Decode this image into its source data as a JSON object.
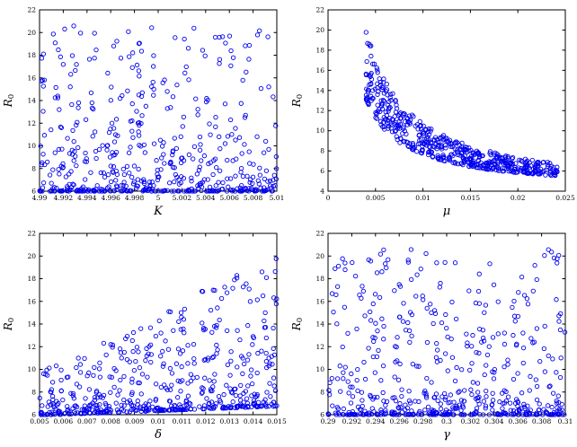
{
  "figure": {
    "background": "#ffffff",
    "axis_color": "#000000",
    "marker_color": "#0000ee"
  },
  "chart_data": [
    {
      "id": "subplot-R0-vs-K",
      "type": "scatter",
      "xlabel": "K",
      "ylabel": {
        "main": "R",
        "sub": "0"
      },
      "xlim": [
        4.99,
        5.01
      ],
      "ylim": [
        6,
        22
      ],
      "xticks": [
        4.99,
        4.992,
        4.994,
        4.996,
        4.998,
        5,
        5.002,
        5.004,
        5.006,
        5.008,
        5.01
      ],
      "xtick_labels": [
        "4.99",
        "4.992",
        "4.994",
        "4.996",
        "4.998",
        "5",
        "5.002",
        "5.004",
        "5.006",
        "5.008",
        "5.01"
      ],
      "yticks": [
        6,
        8,
        10,
        12,
        14,
        16,
        18,
        20,
        22
      ],
      "ytick_labels": [
        "6",
        "8",
        "10",
        "12",
        "14",
        "16",
        "18",
        "20",
        "22"
      ],
      "n_points": 550,
      "seed": 11,
      "x_dist": {
        "type": "uniform",
        "min": 4.99,
        "max": 5.01
      },
      "y_model": {
        "type": "tail",
        "x0": 4.99,
        "base0": 6.0,
        "base_slope": 0,
        "tail0": 14.6,
        "tail_slope": 0,
        "exp": 3.2
      },
      "marker": {
        "shape": "open-circle",
        "color": "#0000ee",
        "radius": 2.2
      },
      "trend": "no visible dependence; R0 dense between 6 and 9 with sparse tail up to ~20 across all K"
    },
    {
      "id": "subplot-R0-vs-mu",
      "type": "scatter",
      "xlabel": "μ",
      "ylabel": {
        "main": "R",
        "sub": "0"
      },
      "xlim": [
        0,
        0.025
      ],
      "ylim": [
        4,
        22
      ],
      "xticks": [
        0,
        0.005,
        0.01,
        0.015,
        0.02,
        0.025
      ],
      "xtick_labels": [
        "0",
        "0.005",
        "0.01",
        "0.015",
        "0.02",
        "0.025"
      ],
      "yticks": [
        4,
        6,
        8,
        10,
        12,
        14,
        16,
        18,
        20,
        22
      ],
      "ytick_labels": [
        "4",
        "6",
        "8",
        "10",
        "12",
        "14",
        "16",
        "18",
        "20",
        "22"
      ],
      "n_points": 550,
      "seed": 22,
      "x_dist": {
        "type": "power",
        "min": 0.004,
        "max": 0.0242,
        "exp": 1.15
      },
      "y_model": {
        "type": "inverse",
        "a": 0.052,
        "c": 4.0,
        "lo": 0.7,
        "hi": 1.3,
        "spread_exp": 1.35
      },
      "marker": {
        "shape": "open-circle",
        "color": "#0000ee",
        "radius": 2.2
      },
      "trend": "strong decreasing hyperbolic relation; R0 ~ 12-20 near mu=0.005 falling to ~6-7 near mu=0.024"
    },
    {
      "id": "subplot-R0-vs-delta",
      "type": "scatter",
      "xlabel": "δ",
      "ylabel": {
        "main": "R",
        "sub": "0"
      },
      "xlim": [
        0.005,
        0.015
      ],
      "ylim": [
        6,
        22
      ],
      "xticks": [
        0.005,
        0.006,
        0.007,
        0.008,
        0.009,
        0.01,
        0.011,
        0.012,
        0.013,
        0.014,
        0.015
      ],
      "xtick_labels": [
        "0.005",
        "0.006",
        "0.007",
        "0.008",
        "0.009",
        "0.01",
        "0.011",
        "0.012",
        "0.013",
        "0.014",
        "0.015"
      ],
      "yticks": [
        6,
        8,
        10,
        12,
        14,
        16,
        18,
        20,
        22
      ],
      "ytick_labels": [
        "6",
        "8",
        "10",
        "12",
        "14",
        "16",
        "18",
        "20",
        "22"
      ],
      "n_points": 550,
      "seed": 33,
      "x_dist": {
        "type": "uniform",
        "min": 0.005,
        "max": 0.015
      },
      "y_model": {
        "type": "tail",
        "x0": 0.005,
        "base0": 5.95,
        "base_slope": 80,
        "tail0": 3.9,
        "tail_slope": 950,
        "exp": 3
      },
      "marker": {
        "shape": "open-circle",
        "color": "#0000ee",
        "radius": 2.2
      },
      "trend": "increasing upper envelope; max R0 rises from ~10 at delta=0.005 to ~20 at delta=0.015, dense band near 6-8"
    },
    {
      "id": "subplot-R0-vs-gamma",
      "type": "scatter",
      "xlabel": "γ",
      "ylabel": {
        "main": "R",
        "sub": "0"
      },
      "xlim": [
        0.29,
        0.31
      ],
      "ylim": [
        6,
        22
      ],
      "xticks": [
        0.29,
        0.292,
        0.294,
        0.296,
        0.298,
        0.3,
        0.302,
        0.304,
        0.306,
        0.308,
        0.31
      ],
      "xtick_labels": [
        "0.29",
        "0.292",
        "0.294",
        "0.296",
        "0.298",
        "0.3",
        "0.302",
        "0.304",
        "0.306",
        "0.308",
        "0.31"
      ],
      "yticks": [
        6,
        8,
        10,
        12,
        14,
        16,
        18,
        20,
        22
      ],
      "ytick_labels": [
        "6",
        "8",
        "10",
        "12",
        "14",
        "16",
        "18",
        "20",
        "22"
      ],
      "n_points": 550,
      "seed": 44,
      "x_dist": {
        "type": "uniform",
        "min": 0.29,
        "max": 0.31
      },
      "y_model": {
        "type": "tail",
        "x0": 0.29,
        "base0": 6.0,
        "base_slope": 0,
        "tail0": 14.6,
        "tail_slope": 0,
        "exp": 3.2
      },
      "marker": {
        "shape": "open-circle",
        "color": "#0000ee",
        "radius": 2.2
      },
      "trend": "no visible dependence; R0 dense between 6 and 9 with sparse tail up to ~20 across all gamma"
    }
  ]
}
